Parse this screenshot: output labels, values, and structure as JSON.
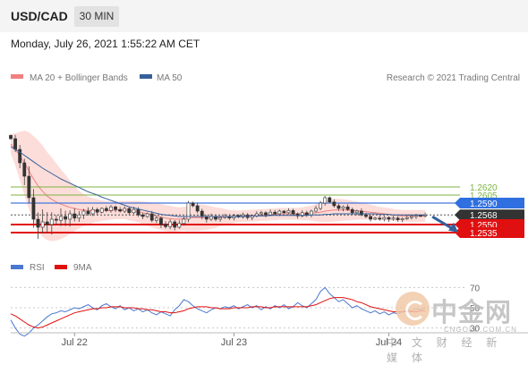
{
  "header": {
    "symbol": "USD/CAD",
    "timeframe": "30 MIN"
  },
  "datetime": "Monday, July 26, 2021 1:55:22 AM CET",
  "watermark": {
    "title": "中金网",
    "site": "CNGOLD.COM.CN",
    "subtitle": "中 文 财 经 新 媒 体"
  },
  "colors": {
    "bollinger": "#f08080",
    "bollinger_fill": "#fbd4d0",
    "ma50": "#35609c",
    "support": "#e01010",
    "resistance_green": "#7cb342",
    "resistance_blue": "#4477dd",
    "pivot": "#333333",
    "rsi": "#4a78d0",
    "rsi_ma": "#e01010",
    "arrow": "#35609c"
  },
  "chart_data": [
    {
      "type": "candlestick",
      "legend": [
        {
          "name": "MA 20 + Bollinger Bands",
          "color": "#f08080"
        },
        {
          "name": "MA 50",
          "color": "#35609c"
        }
      ],
      "source_note": "Research © 2021 Trading Central",
      "x_ticks": [
        "Jul 22",
        "Jul 23",
        "Jul 24"
      ],
      "x_tick_index": [
        14,
        49,
        83
      ],
      "bar_count": 92,
      "ylim": [
        1.2515,
        1.2755
      ],
      "levels": [
        {
          "value": 1.262,
          "label": "1.2620",
          "style": "green"
        },
        {
          "value": 1.2605,
          "label": "1.2605",
          "style": "green"
        },
        {
          "value": 1.259,
          "label": "1.2590",
          "style": "blue"
        },
        {
          "value": 1.2568,
          "label": "1.2568",
          "style": "pivot"
        },
        {
          "value": 1.255,
          "label": "1.2550",
          "style": "red"
        },
        {
          "value": 1.2535,
          "label": "1.2535",
          "style": "red"
        }
      ],
      "close": [
        1.271,
        1.269,
        1.2665,
        1.264,
        1.26,
        1.256,
        1.2545,
        1.2555,
        1.255,
        1.256,
        1.2558,
        1.2565,
        1.256,
        1.257,
        1.2562,
        1.2568,
        1.2575,
        1.257,
        1.2578,
        1.2573,
        1.258,
        1.2576,
        1.2583,
        1.2578,
        1.2575,
        1.258,
        1.2572,
        1.2578,
        1.2568,
        1.2565,
        1.257,
        1.2558,
        1.2562,
        1.255,
        1.2546,
        1.2555,
        1.2545,
        1.2552,
        1.256,
        1.259,
        1.2585,
        1.2575,
        1.2565,
        1.256,
        1.2565,
        1.256,
        1.2563,
        1.2565,
        1.2562,
        1.2567,
        1.2564,
        1.2568,
        1.2563,
        1.2566,
        1.257,
        1.2572,
        1.2568,
        1.2573,
        1.257,
        1.2575,
        1.2572,
        1.2576,
        1.257,
        1.2566,
        1.2572,
        1.2568,
        1.2575,
        1.258,
        1.259,
        1.26,
        1.2592,
        1.2585,
        1.258,
        1.2583,
        1.2578,
        1.2572,
        1.2575,
        1.2568,
        1.2565,
        1.256,
        1.2562,
        1.256,
        1.2563,
        1.256,
        1.2562,
        1.2559,
        1.2561,
        1.2563,
        1.2565,
        1.2567,
        1.2566,
        1.2568
      ],
      "ma20": [
        1.27,
        1.269,
        1.2678,
        1.2665,
        1.265,
        1.2635,
        1.2622,
        1.2612,
        1.2603,
        1.2597,
        1.2592,
        1.2588,
        1.2585,
        1.2582,
        1.258,
        1.2578,
        1.2577,
        1.2576,
        1.2576,
        1.2576,
        1.2576,
        1.2576,
        1.2576,
        1.2577,
        1.2577,
        1.2577,
        1.2576,
        1.2575,
        1.2574,
        1.2572,
        1.257,
        1.2568,
        1.2566,
        1.2564,
        1.2562,
        1.2561,
        1.256,
        1.256,
        1.2561,
        1.2562,
        1.2563,
        1.2563,
        1.2563,
        1.2563,
        1.2563,
        1.2563,
        1.2564,
        1.2564,
        1.2564,
        1.2565,
        1.2565,
        1.2566,
        1.2566,
        1.2567,
        1.2567,
        1.2568,
        1.2568,
        1.2569,
        1.2569,
        1.257,
        1.257,
        1.257,
        1.257,
        1.257,
        1.257,
        1.2571,
        1.2571,
        1.2572,
        1.2573,
        1.2575,
        1.2576,
        1.2577,
        1.2577,
        1.2577,
        1.2577,
        1.2576,
        1.2576,
        1.2575,
        1.2574,
        1.2573,
        1.2572,
        1.2571,
        1.257,
        1.2569,
        1.2568,
        1.2567,
        1.2566,
        1.2566,
        1.2566,
        1.2566,
        1.2566,
        1.2566
      ],
      "band_width": [
        0.0018,
        0.003,
        0.0045,
        0.006,
        0.0072,
        0.008,
        0.0085,
        0.0085,
        0.0082,
        0.0078,
        0.0072,
        0.0065,
        0.0058,
        0.005,
        0.0042,
        0.0035,
        0.003,
        0.0026,
        0.0023,
        0.0021,
        0.0019,
        0.0018,
        0.0017,
        0.0017,
        0.0017,
        0.0017,
        0.0018,
        0.0019,
        0.002,
        0.0021,
        0.0022,
        0.0023,
        0.0024,
        0.0024,
        0.0024,
        0.0024,
        0.0023,
        0.0022,
        0.0022,
        0.0024,
        0.0025,
        0.0025,
        0.0024,
        0.0023,
        0.0021,
        0.0019,
        0.0017,
        0.0015,
        0.0013,
        0.0012,
        0.0011,
        0.0011,
        0.0011,
        0.0011,
        0.0011,
        0.0011,
        0.0011,
        0.0011,
        0.0011,
        0.0011,
        0.0011,
        0.0011,
        0.0011,
        0.0011,
        0.0012,
        0.0013,
        0.0014,
        0.0016,
        0.0018,
        0.002,
        0.0021,
        0.0021,
        0.0021,
        0.002,
        0.0019,
        0.0018,
        0.0017,
        0.0016,
        0.0015,
        0.0014,
        0.0013,
        0.0012,
        0.0012,
        0.0012,
        0.0011,
        0.0011,
        0.0011,
        0.0011,
        0.0011,
        0.0011,
        0.0011,
        0.0011
      ],
      "ma50": [
        1.2695,
        1.269,
        1.2685,
        1.2679,
        1.2673,
        1.2667,
        1.2661,
        1.2655,
        1.265,
        1.2645,
        1.264,
        1.2635,
        1.2631,
        1.2627,
        1.2623,
        1.2619,
        1.2615,
        1.2611,
        1.2608,
        1.2605,
        1.2601,
        1.2598,
        1.2595,
        1.2592,
        1.2589,
        1.2586,
        1.2583,
        1.2581,
        1.2579,
        1.2577,
        1.2575,
        1.2573,
        1.2571,
        1.2569,
        1.2568,
        1.2567,
        1.2566,
        1.2565,
        1.2565,
        1.2565,
        1.2565,
        1.2565,
        1.2565,
        1.2565,
        1.2565,
        1.2565,
        1.2565,
        1.2565,
        1.2565,
        1.2565,
        1.2565,
        1.2565,
        1.2566,
        1.2566,
        1.2566,
        1.2566,
        1.2566,
        1.2567,
        1.2567,
        1.2567,
        1.2567,
        1.2567,
        1.2567,
        1.2567,
        1.2567,
        1.2567,
        1.2568,
        1.2568,
        1.2568,
        1.2569,
        1.2569,
        1.257,
        1.257,
        1.257,
        1.257,
        1.257,
        1.257,
        1.257,
        1.257,
        1.257,
        1.257,
        1.2569,
        1.2569,
        1.2569,
        1.2568,
        1.2568,
        1.2568,
        1.2568,
        1.2568,
        1.2568,
        1.2568,
        1.2568
      ],
      "forecast_arrow": {
        "from_index": 91,
        "from_value": 1.2568,
        "to_value": 1.2537
      }
    },
    {
      "type": "line",
      "legend": [
        {
          "name": "RSI",
          "color": "#4a78d0"
        },
        {
          "name": "9MA",
          "color": "#e01010"
        }
      ],
      "levels": [
        {
          "value": 70,
          "label": "70"
        },
        {
          "value": 50,
          "label": "50"
        },
        {
          "value": 30,
          "label": "30"
        }
      ],
      "ylim": [
        20,
        80
      ],
      "series": [
        {
          "name": "RSI",
          "values": [
            38,
            30,
            24,
            22,
            25,
            30,
            33,
            37,
            41,
            44,
            45,
            47,
            46,
            48,
            50,
            49,
            51,
            53,
            50,
            48,
            52,
            54,
            51,
            49,
            52,
            48,
            50,
            47,
            49,
            46,
            48,
            45,
            43,
            46,
            44,
            42,
            48,
            52,
            58,
            56,
            52,
            49,
            47,
            45,
            48,
            50,
            49,
            51,
            50,
            52,
            49,
            51,
            53,
            50,
            52,
            48,
            51,
            49,
            52,
            50,
            53,
            49,
            51,
            55,
            52,
            50,
            54,
            58,
            66,
            70,
            64,
            60,
            56,
            58,
            54,
            50,
            52,
            49,
            47,
            45,
            47,
            44,
            46,
            43,
            45,
            44,
            46,
            48,
            47,
            49,
            48,
            50
          ]
        },
        {
          "name": "9MA",
          "values": [
            44,
            42,
            39,
            36,
            33,
            31,
            30,
            31,
            33,
            35,
            37,
            39,
            41,
            43,
            45,
            46,
            47,
            48,
            49,
            49,
            50,
            50,
            51,
            51,
            51,
            50,
            50,
            50,
            49,
            49,
            48,
            48,
            47,
            46,
            46,
            45,
            45,
            46,
            47,
            49,
            50,
            51,
            51,
            51,
            50,
            50,
            49,
            49,
            49,
            50,
            50,
            50,
            50,
            51,
            51,
            51,
            50,
            50,
            51,
            51,
            51,
            51,
            51,
            51,
            51,
            51,
            52,
            53,
            55,
            57,
            59,
            60,
            60,
            60,
            59,
            58,
            56,
            55,
            53,
            51,
            50,
            49,
            48,
            47,
            46,
            46,
            46,
            46,
            46,
            46,
            47,
            47
          ]
        }
      ]
    }
  ]
}
